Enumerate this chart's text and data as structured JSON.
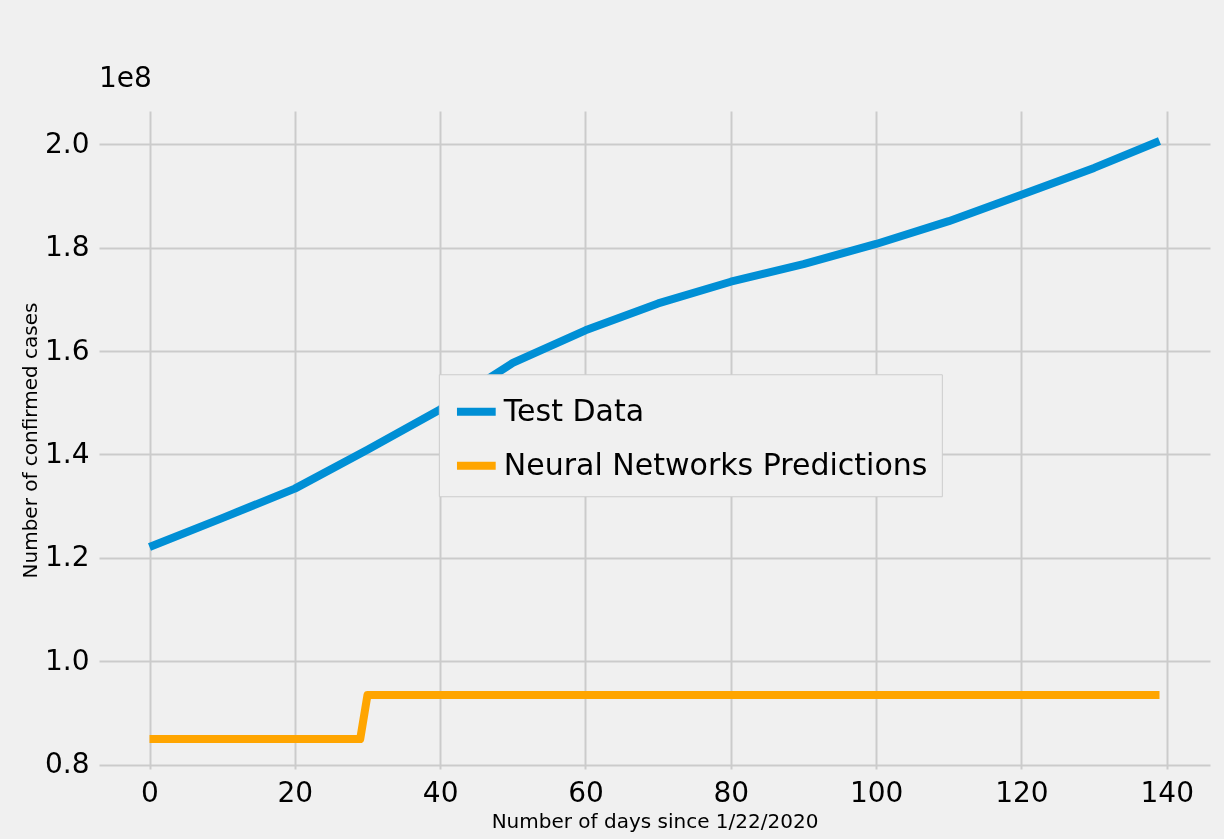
{
  "chart_data": {
    "type": "line",
    "xlabel": "Number of days since 1/22/2020",
    "ylabel": "Number of confirmed cases",
    "annotations": [
      "1e8"
    ],
    "xlim": [
      -6.95,
      145.95
    ],
    "ylim": [
      0.792,
      2.064
    ],
    "xticks": [
      0,
      20,
      40,
      60,
      80,
      100,
      120,
      140
    ],
    "yticks": [
      0.8,
      {
        "value": 1,
        "label": "1.0"
      },
      1.2,
      1.4,
      1.6,
      1.8,
      {
        "value": 2,
        "label": "2.0"
      }
    ],
    "grid": true,
    "legend": "right",
    "series": [
      {
        "name": "Test Data",
        "color": "#008fd5",
        "x": [
          0,
          10,
          20,
          30,
          40,
          50,
          60,
          70,
          80,
          90,
          100,
          110,
          120,
          130,
          139
        ],
        "values": [
          1.221,
          1.277,
          1.334,
          1.409,
          1.487,
          1.577,
          1.64,
          1.692,
          1.734,
          1.768,
          1.807,
          1.851,
          1.902,
          1.954,
          2.006
        ]
      },
      {
        "name": "Neural Networks Predictions",
        "color": "#ffa500",
        "x": [
          0,
          29,
          30,
          139
        ],
        "values": [
          0.85,
          0.85,
          0.935,
          0.935
        ]
      }
    ]
  }
}
